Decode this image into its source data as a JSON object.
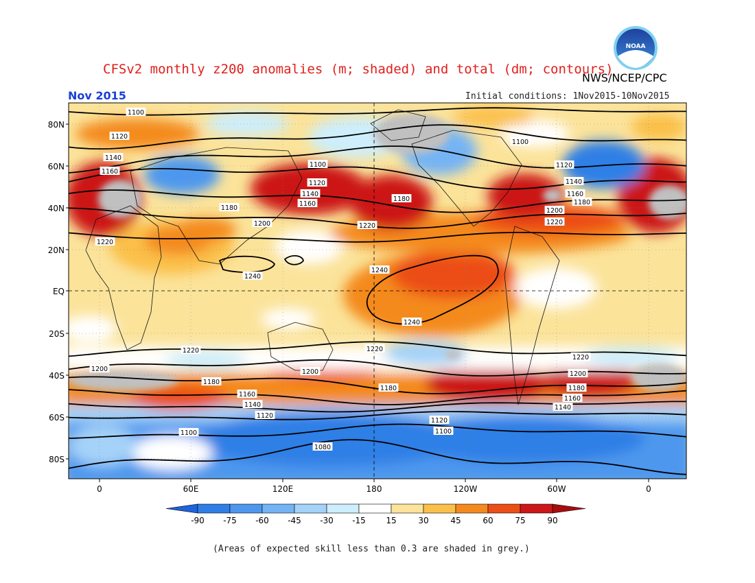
{
  "title": "CFSv2 monthly z200 anomalies (m; shaded) and total (dm; contours)",
  "agency": "NWS/NCEP/CPC",
  "logo_text": "NOAA",
  "month": "Nov 2015",
  "initial_conditions": "Initial conditions: 1Nov2015-10Nov2015",
  "footnote": "(Areas of expected skill less than 0.3 are shaded in grey.)",
  "lat_labels": [
    "80N",
    "60N",
    "40N",
    "20N",
    "EQ",
    "20S",
    "40S",
    "60S",
    "80S"
  ],
  "lon_labels": [
    "0",
    "60E",
    "120E",
    "180",
    "120W",
    "60W",
    "0"
  ],
  "colorbar": {
    "ticks": [
      "-90",
      "-75",
      "-60",
      "-45",
      "-30",
      "-15",
      "15",
      "30",
      "45",
      "60",
      "75",
      "90"
    ],
    "colors": [
      "#1e64dc",
      "#2f7fe6",
      "#4d98ee",
      "#74b4f4",
      "#a4d2f8",
      "#cdeefc",
      "#ffffff",
      "#fbe39a",
      "#fbc04a",
      "#f48a1e",
      "#ec4e18",
      "#cc1818",
      "#a80c0c"
    ]
  },
  "colors": {
    "title": "#e0201c",
    "month": "#1a3fd8",
    "skill_grey": "#c0c0c0",
    "background_warm": "#fbe39a"
  },
  "contours": [
    {
      "label": "1100"
    },
    {
      "label": "1120"
    },
    {
      "label": "1140"
    },
    {
      "label": "1160"
    },
    {
      "label": "1180"
    },
    {
      "label": "1200"
    },
    {
      "label": "1220"
    },
    {
      "label": "1240"
    },
    {
      "label": "1240"
    },
    {
      "label": "1220"
    },
    {
      "label": "1200"
    },
    {
      "label": "1180"
    },
    {
      "label": "1160"
    },
    {
      "label": "1140"
    },
    {
      "label": "1120"
    },
    {
      "label": "1100"
    },
    {
      "label": "1080"
    }
  ],
  "contour_labels": [
    "1100",
    "1120",
    "1140",
    "1160",
    "1100",
    "1120",
    "1140",
    "1160",
    "1180",
    "1200",
    "1220",
    "1180",
    "1220",
    "1100",
    "1120",
    "1140",
    "1160",
    "1180",
    "1200",
    "1220",
    "1240",
    "1240",
    "1240",
    "1220",
    "1220",
    "1200",
    "1200",
    "1180",
    "1180",
    "1160",
    "1140",
    "1120",
    "1100",
    "1180",
    "1160",
    "1140",
    "1120",
    "1100",
    "1080",
    "1200",
    "1180",
    "1160",
    "1140",
    "1220"
  ]
}
